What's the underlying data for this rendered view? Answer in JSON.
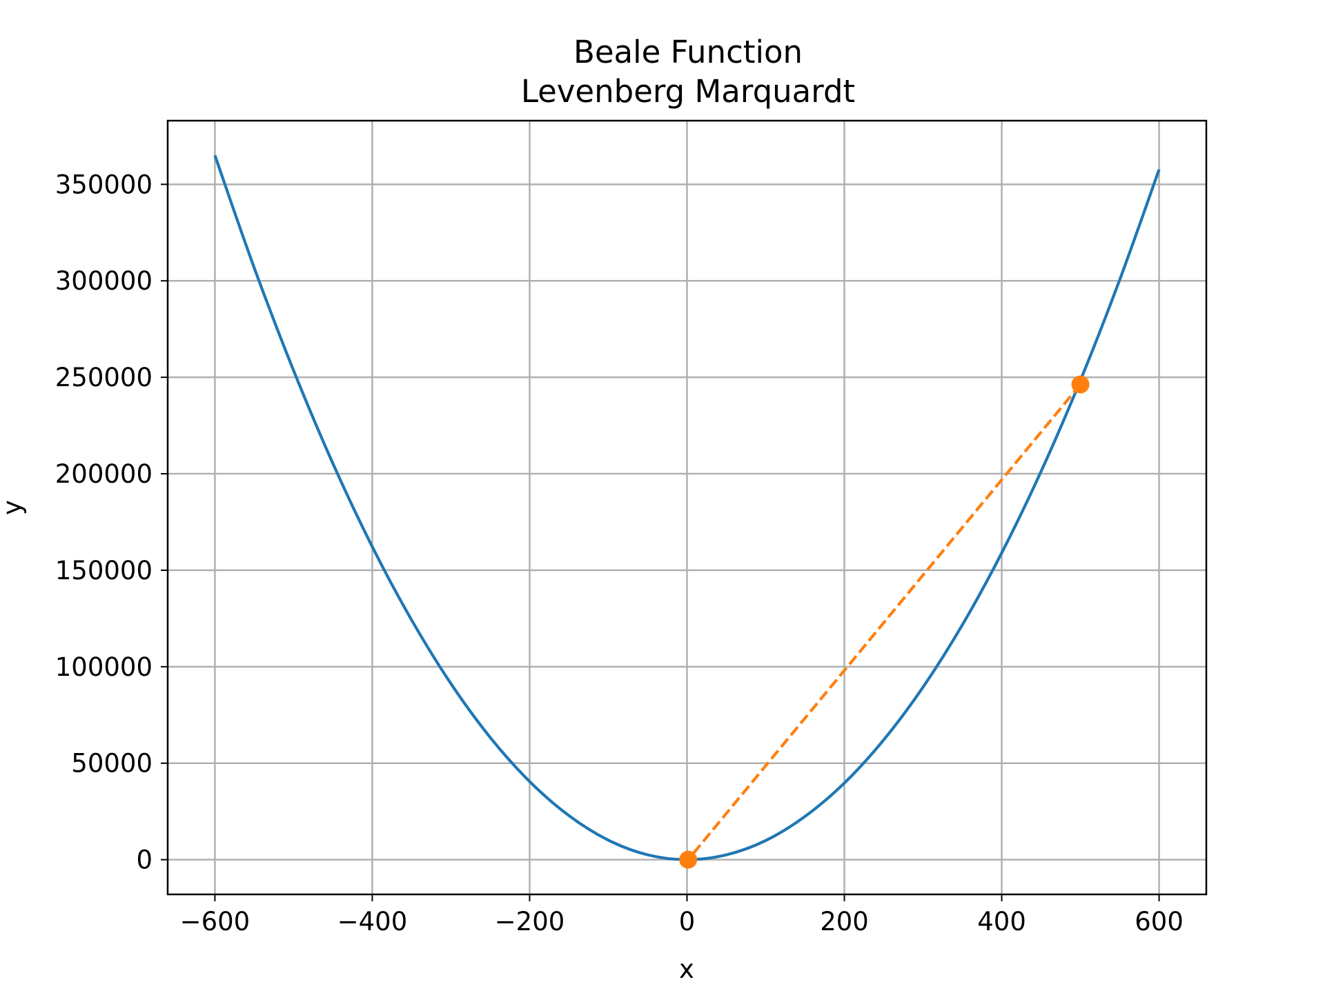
{
  "chart_data": {
    "type": "line",
    "title": "Beale Function",
    "subtitle": "Levenberg Marquardt",
    "xlabel": "x",
    "ylabel": "y",
    "xlim": [
      -660,
      660
    ],
    "ylim": [
      -18000,
      383000
    ],
    "xticks": [
      -600,
      -400,
      -200,
      0,
      200,
      400,
      600
    ],
    "xtick_labels": [
      "−600",
      "−400",
      "−200",
      "0",
      "200",
      "400",
      "600"
    ],
    "yticks": [
      0,
      50000,
      100000,
      150000,
      200000,
      250000,
      300000,
      350000
    ],
    "ytick_labels": [
      "0",
      "50000",
      "100000",
      "150000",
      "200000",
      "250000",
      "300000",
      "350000"
    ],
    "grid": true,
    "series": [
      {
        "style": "solid",
        "color": "#1f77b4",
        "x": [
          -600,
          -550,
          -500,
          -450,
          -400,
          -350,
          -300,
          -250,
          -200,
          -150,
          -100,
          -50,
          0,
          50,
          100,
          150,
          200,
          250,
          300,
          350,
          400,
          450,
          500,
          550,
          600
        ],
        "y": [
          365000,
          306700,
          253500,
          205300,
          162200,
          124200,
          91200,
          63300,
          40500,
          22800,
          10100,
          2500,
          0,
          2500,
          9900,
          22400,
          39700,
          62100,
          89400,
          121700,
          159000,
          201200,
          248400,
          300600,
          357700
        ]
      },
      {
        "style": "dashed",
        "color": "#ff7f0e",
        "marker": "circle",
        "x": [
          500,
          1.5
        ],
        "y": [
          246300,
          0
        ]
      }
    ]
  }
}
